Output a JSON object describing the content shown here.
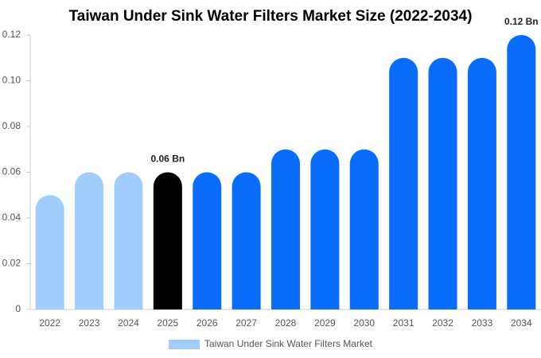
{
  "chart_data": {
    "type": "bar",
    "title": "Taiwan Under Sink Water Filters Market Size (2022-2034)",
    "categories": [
      "2022",
      "2023",
      "2024",
      "2025",
      "2026",
      "2027",
      "2028",
      "2029",
      "2030",
      "2031",
      "2032",
      "2033",
      "2034"
    ],
    "series": [
      {
        "name": "Taiwan Under Sink Water Filters Market",
        "color": "#a0cdfc",
        "values": [
          0.05,
          0.06,
          0.06,
          0.06,
          0.06,
          0.06,
          0.07,
          0.07,
          0.07,
          0.11,
          0.11,
          0.11,
          0.12
        ],
        "colors": [
          "#a0cdfc",
          "#a0cdfc",
          "#a0cdfc",
          "#000000",
          "#0a6cfa",
          "#0a6cfa",
          "#0a6cfa",
          "#0a6cfa",
          "#0a6cfa",
          "#0a6cfa",
          "#0a6cfa",
          "#0a6cfa",
          "#0a6cfa"
        ],
        "value_labels": [
          null,
          null,
          null,
          "0.06 Bn",
          null,
          null,
          null,
          null,
          null,
          null,
          null,
          null,
          "0.12 Bn"
        ]
      }
    ],
    "ylim": [
      0,
      0.12
    ],
    "yticks": [
      0,
      0.02,
      0.04,
      0.06,
      0.08,
      {
        "value": 0.1,
        "label": "0.10"
      },
      0.12
    ],
    "grid": false,
    "legend": "bottom"
  }
}
